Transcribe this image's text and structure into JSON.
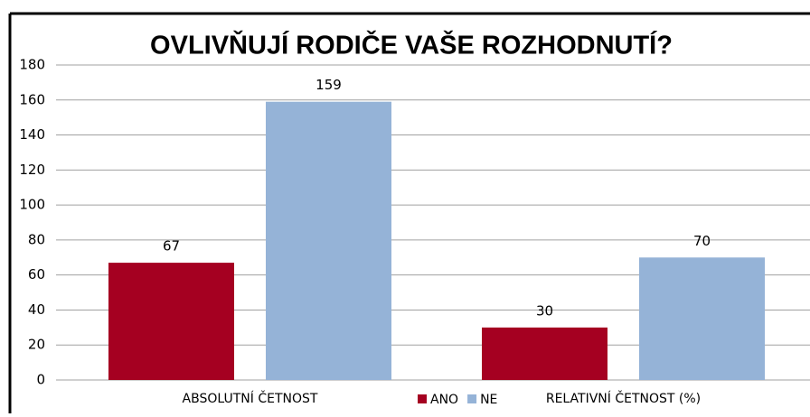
{
  "chart_data": {
    "type": "bar",
    "title": "OVLIVŇUJÍ RODIČE VAŠE ROZHODNUTÍ?",
    "categories": [
      "ABSOLUTNÍ ČETNOST",
      "RELATIVNÍ ČETNOST (%)"
    ],
    "series": [
      {
        "name": "ANO",
        "color": "#a50021",
        "values": [
          67,
          30
        ]
      },
      {
        "name": "NE",
        "color": "#95b3d7",
        "values": [
          159,
          70
        ]
      }
    ],
    "ylim": [
      0,
      180
    ],
    "yticks": [
      0,
      20,
      40,
      60,
      80,
      100,
      120,
      140,
      160,
      180
    ],
    "grid": true,
    "legend": "bottom"
  }
}
